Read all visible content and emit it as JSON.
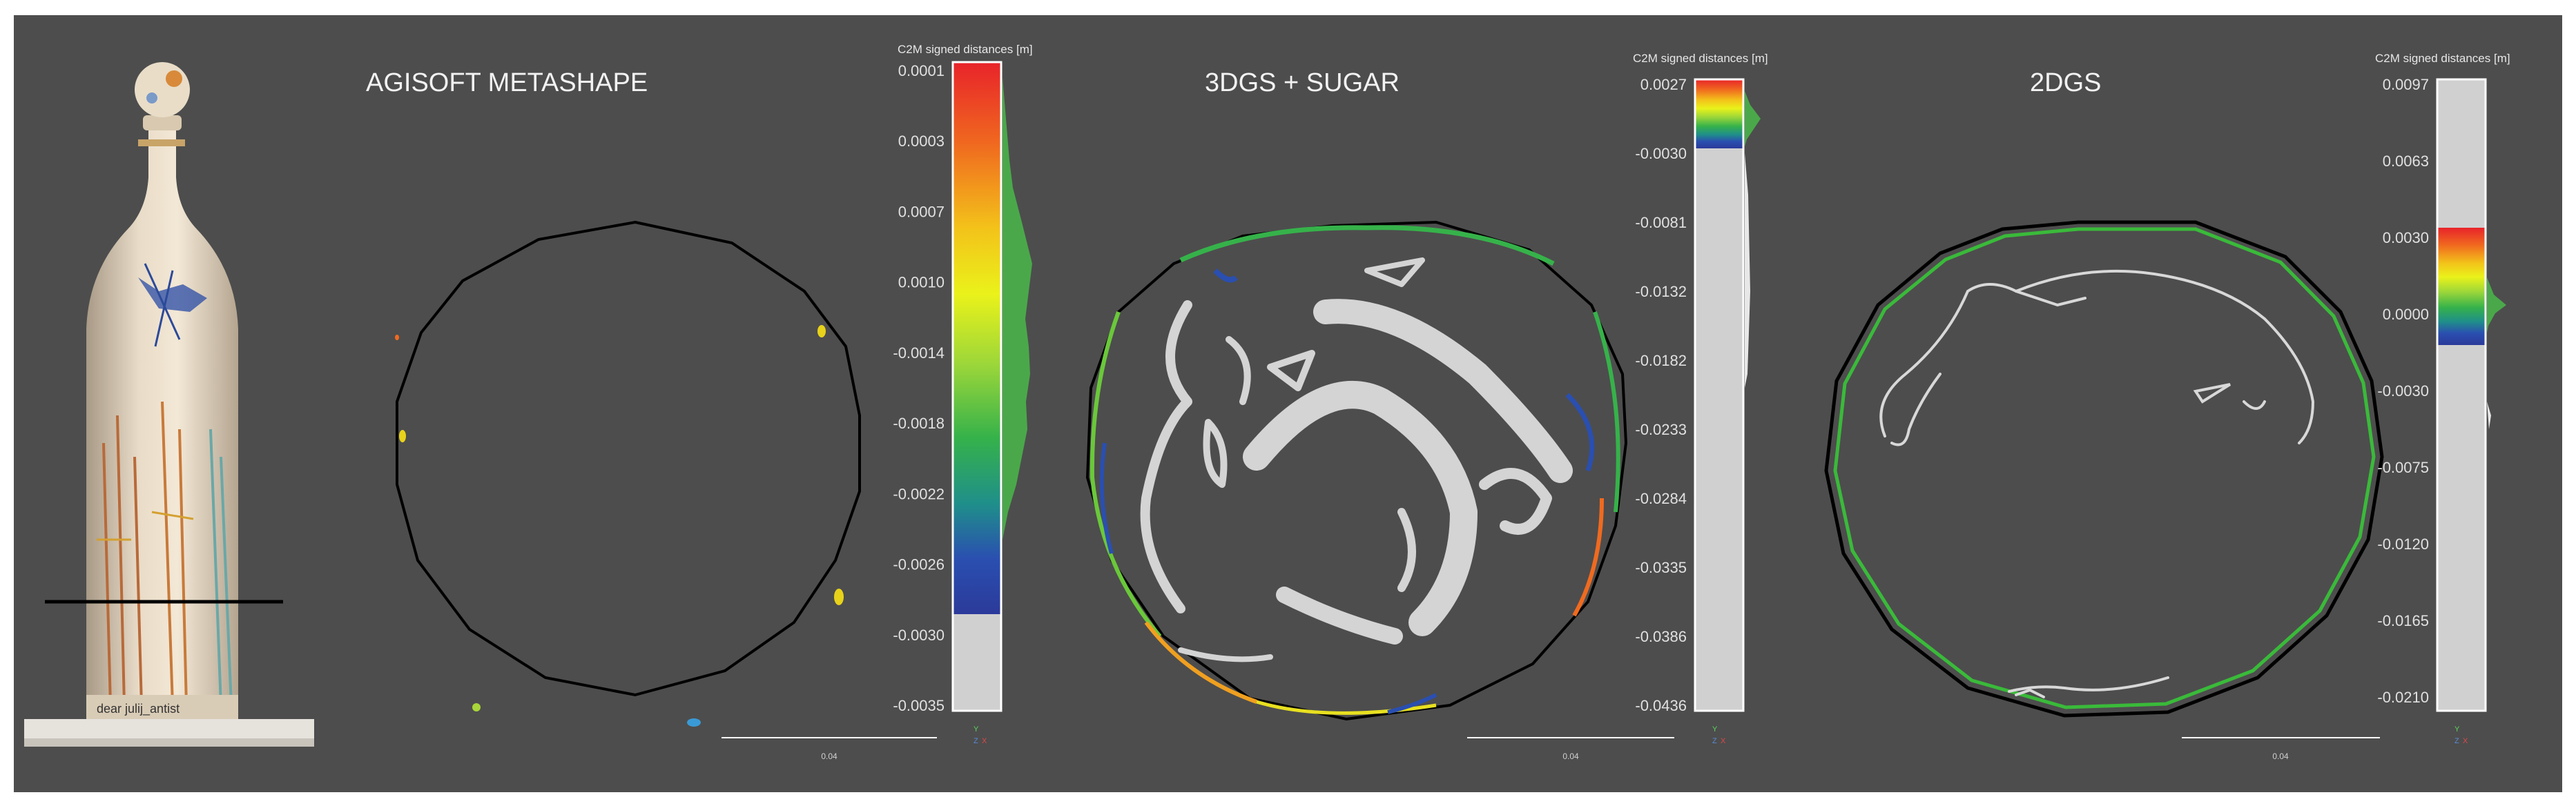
{
  "panels": [
    {
      "title": "AGISOFT METASHAPE",
      "colorbar_title": "C2M signed distances [m]",
      "ticks": [
        "0.0001",
        "0.0003",
        "0.0007",
        "0.0010",
        "-0.0014",
        "-0.0018",
        "-0.0022",
        "-0.0026",
        "-0.0030",
        "-0.0035"
      ],
      "scale_label": "0.04"
    },
    {
      "title": "3DGS + SUGAR",
      "colorbar_title": "C2M signed distances [m]",
      "ticks": [
        "0.0027",
        "-0.0030",
        "-0.0081",
        "-0.0132",
        "-0.0182",
        "-0.0233",
        "-0.0284",
        "-0.0335",
        "-0.0386",
        "-0.0436"
      ],
      "scale_label": "0.04"
    },
    {
      "title": "2DGS",
      "colorbar_title": "C2M signed distances [m]",
      "ticks": [
        "0.0097",
        "0.0063",
        "0.0030",
        "0.0000",
        "-0.0030",
        "-0.0075",
        "-0.0120",
        "-0.0165",
        "-0.0210"
      ],
      "scale_label": "0.04"
    }
  ],
  "bottle_label": "dear julij_antist",
  "axis_letters": [
    "Y",
    "Z",
    "X"
  ],
  "colors": {
    "background": "#4d4d4d",
    "section_line": "#000000",
    "outline": "#000000",
    "mesh_gray": "#cfcfcf"
  }
}
